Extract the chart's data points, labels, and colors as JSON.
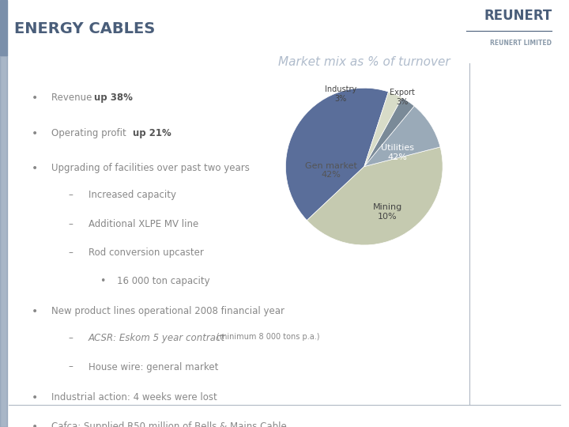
{
  "title": "ENERGY CABLES",
  "title_color": "#4a5e7a",
  "header_bar_color": "#7a8faa",
  "bg_color": "#edeae4",
  "white_color": "#ffffff",
  "pie_title": "Market mix as % of turnover",
  "pie_title_color": "#b0bccc",
  "pie_slices": [
    42,
    42,
    10,
    3,
    3
  ],
  "pie_colors": [
    "#5a6e9a",
    "#c5cab0",
    "#9aaab8",
    "#7a8a98",
    "#d8dcc8"
  ],
  "text_color": "#888888",
  "bold_color": "#555555",
  "accent_color": "#8090a8",
  "reunert_color": "#4a5e7a",
  "divider_color": "#b0b8c4"
}
